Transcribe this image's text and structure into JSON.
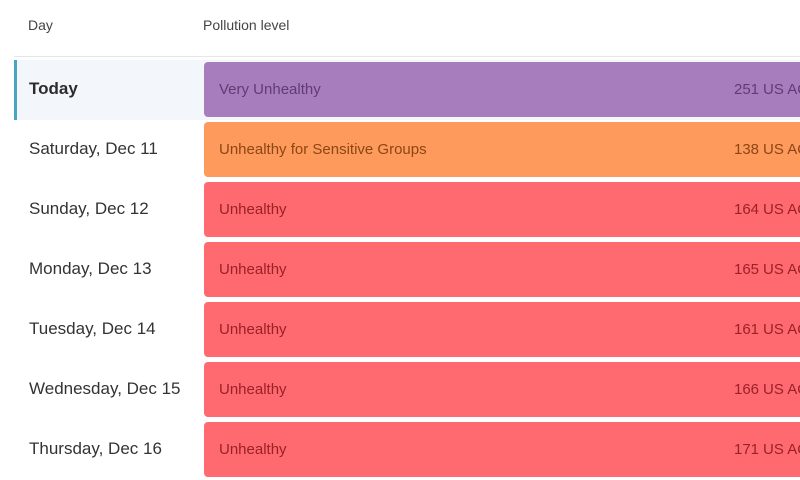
{
  "header": {
    "day_label": "Day",
    "level_label": "Pollution level"
  },
  "unit": "US AQI",
  "colors": {
    "very_unhealthy": "#a87dbe",
    "very_unhealthy_text": "#5f3d72",
    "unhealthy_sensitive": "#fd9a5c",
    "unhealthy_sensitive_text": "#8c4615",
    "unhealthy": "#fe6a6f",
    "unhealthy_text": "#9a2127",
    "today_accent": "#4aa5c2"
  },
  "rows": [
    {
      "day": "Today",
      "category": "Very Unhealthy",
      "aqi": "251",
      "level": "very_unhealthy",
      "selected": true
    },
    {
      "day": "Saturday, Dec 11",
      "category": "Unhealthy for Sensitive Groups",
      "aqi": "138",
      "level": "unhealthy_sensitive",
      "selected": false
    },
    {
      "day": "Sunday, Dec 12",
      "category": "Unhealthy",
      "aqi": "164",
      "level": "unhealthy",
      "selected": false
    },
    {
      "day": "Monday, Dec 13",
      "category": "Unhealthy",
      "aqi": "165",
      "level": "unhealthy",
      "selected": false
    },
    {
      "day": "Tuesday, Dec 14",
      "category": "Unhealthy",
      "aqi": "161",
      "level": "unhealthy",
      "selected": false
    },
    {
      "day": "Wednesday, Dec 15",
      "category": "Unhealthy",
      "aqi": "166",
      "level": "unhealthy",
      "selected": false
    },
    {
      "day": "Thursday, Dec 16",
      "category": "Unhealthy",
      "aqi": "171",
      "level": "unhealthy",
      "selected": false
    }
  ]
}
